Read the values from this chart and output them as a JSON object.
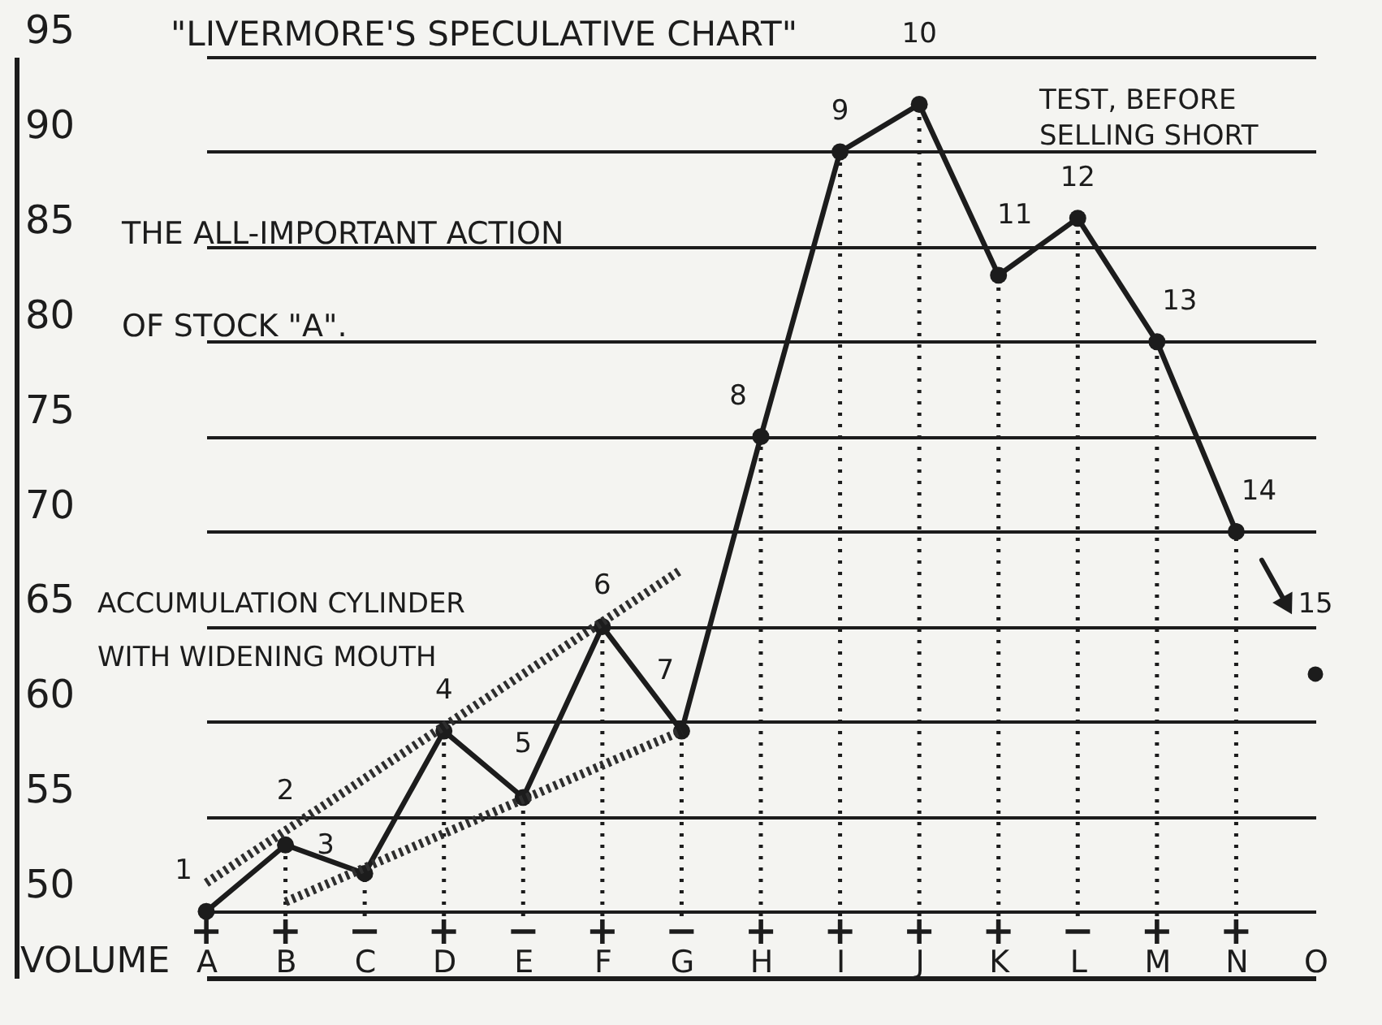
{
  "chart_data": {
    "type": "line",
    "title": "\"LIVERMORE'S SPECULATIVE CHART\"",
    "xlabel": "VOLUME",
    "categories": [
      "A",
      "B",
      "C",
      "D",
      "E",
      "F",
      "G",
      "H",
      "I",
      "J",
      "K",
      "L",
      "M",
      "N",
      "O"
    ],
    "series": [
      {
        "color": "#1c1c1c",
        "values": [
          50,
          53.5,
          52,
          59.5,
          56,
          65,
          59.5,
          75,
          90,
          92.5,
          83.5,
          86.5,
          80,
          70,
          null
        ]
      },
      {
        "type": "line",
        "x": [
          "A",
          "G"
        ],
        "values": [
          51.5,
          68
        ],
        "color": "#2e2e2e",
        "line_style": "dashed",
        "marker": "none"
      },
      {
        "type": "line",
        "x": [
          "B",
          "G"
        ],
        "values": [
          50.5,
          59.5
        ],
        "color": "#2e2e2e",
        "line_style": "dashed",
        "marker": "none"
      },
      {
        "type": "scatter",
        "x": [
          "O"
        ],
        "values": [
          62.5
        ],
        "color": "#1c1c1c"
      }
    ],
    "ylim": [
      46.5,
      95
    ],
    "yticks": [
      50,
      55,
      60,
      65,
      70,
      75,
      80,
      85,
      90,
      95
    ],
    "grid": true,
    "marker": "circle",
    "annotations": [
      "THE ALL-IMPORTANT ACTION OF STOCK \"A\".",
      "ACCUMULATION CYLINDER WITH WIDENING MOUTH",
      "TEST, BEFORE SELLING SHORT",
      "+",
      "+",
      "−",
      {
        "text": "1",
        "x": "A",
        "y": 50
      },
      {
        "text": "2",
        "x": "B",
        "y": 53.5
      },
      {
        "text": "3",
        "x": "C",
        "y": 52
      },
      {
        "text": "4",
        "x": "D",
        "y": 59.5
      },
      {
        "text": "5",
        "x": "E",
        "y": 56
      },
      {
        "text": "6",
        "x": "F",
        "y": 65
      },
      {
        "text": "7",
        "x": "G",
        "y": 59.5
      },
      {
        "text": "8",
        "x": "H",
        "y": 75
      },
      {
        "text": "9",
        "x": "I",
        "y": 90
      },
      {
        "text": "10",
        "x": "J",
        "y": 92.5
      },
      {
        "text": "11",
        "x": "K",
        "y": 83.5
      },
      {
        "text": "12",
        "x": "L",
        "y": 86.5
      },
      {
        "text": "13",
        "x": "M",
        "y": 80
      },
      {
        "text": "14",
        "x": "N",
        "y": 70
      },
      {
        "text": "15",
        "x": "O",
        "y": 62.5
      },
      {
        "text": "+",
        "x": "A",
        "y": 50
      },
      {
        "text": "+",
        "x": "B",
        "y": 53.5
      },
      {
        "text": "−",
        "x": "C",
        "y": 52
      },
      {
        "text": "+",
        "x": "D",
        "y": 59.5
      },
      {
        "text": "−",
        "x": "E",
        "y": 56
      },
      {
        "text": "+",
        "x": "F",
        "y": 65
      },
      {
        "text": "−",
        "x": "G",
        "y": 59.5
      },
      {
        "text": "+",
        "x": "H",
        "y": 75
      },
      {
        "text": "+",
        "x": "K",
        "y": 83.5
      },
      {
        "text": "+",
        "x": "M",
        "y": 80
      },
      {
        "text": "+",
        "x": "N",
        "y": 70
      }
    ]
  }
}
